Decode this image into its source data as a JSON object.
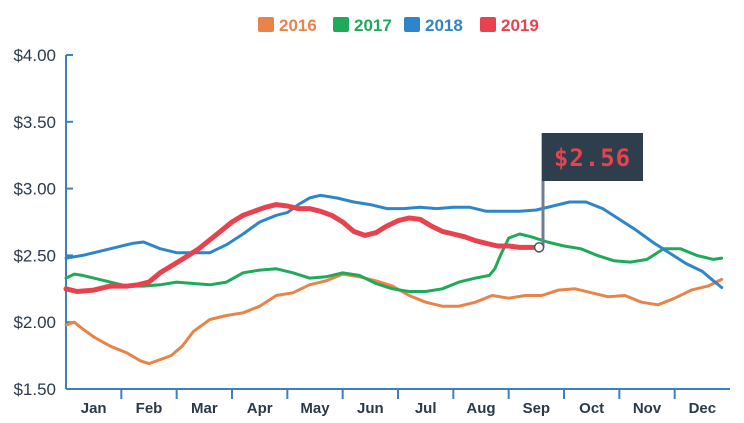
{
  "chart_data": {
    "type": "line",
    "title": "",
    "xlabel": "",
    "ylabel": "",
    "categories": [
      "Jan",
      "Feb",
      "Mar",
      "Apr",
      "May",
      "Jun",
      "Jul",
      "Aug",
      "Sep",
      "Oct",
      "Nov",
      "Dec"
    ],
    "y_ticks": [
      "$1.50",
      "$2.00",
      "$2.50",
      "$3.00",
      "$3.50",
      "$4.00"
    ],
    "ylim": [
      1.5,
      4.0
    ],
    "xlim": [
      0,
      12
    ],
    "grid": false,
    "legend_position": "top",
    "series": [
      {
        "name": "2016",
        "color": "#e8834a",
        "x": [
          0,
          0.15,
          0.3,
          0.5,
          0.8,
          1.1,
          1.35,
          1.5,
          1.7,
          1.9,
          2.1,
          2.3,
          2.6,
          2.9,
          3.2,
          3.5,
          3.8,
          4.1,
          4.4,
          4.7,
          5.0,
          5.3,
          5.6,
          5.9,
          6.2,
          6.5,
          6.8,
          7.1,
          7.4,
          7.7,
          8.0,
          8.3,
          8.6,
          8.9,
          9.2,
          9.5,
          9.8,
          10.1,
          10.4,
          10.7,
          11.0,
          11.3,
          11.6,
          11.85
        ],
        "y": [
          1.98,
          2.0,
          1.95,
          1.89,
          1.82,
          1.77,
          1.71,
          1.69,
          1.72,
          1.75,
          1.82,
          1.93,
          2.02,
          2.05,
          2.07,
          2.12,
          2.2,
          2.22,
          2.28,
          2.31,
          2.36,
          2.34,
          2.31,
          2.27,
          2.2,
          2.15,
          2.12,
          2.12,
          2.15,
          2.2,
          2.18,
          2.2,
          2.2,
          2.24,
          2.25,
          2.22,
          2.19,
          2.2,
          2.15,
          2.13,
          2.18,
          2.24,
          2.27,
          2.32
        ]
      },
      {
        "name": "2017",
        "color": "#1faa59",
        "x": [
          0,
          0.15,
          0.3,
          0.5,
          0.8,
          1.1,
          1.4,
          1.7,
          2.0,
          2.3,
          2.6,
          2.9,
          3.2,
          3.5,
          3.8,
          4.1,
          4.4,
          4.7,
          5.0,
          5.3,
          5.6,
          5.9,
          6.2,
          6.5,
          6.8,
          7.1,
          7.4,
          7.65,
          7.75,
          7.85,
          8.0,
          8.2,
          8.4,
          8.7,
          9.0,
          9.3,
          9.6,
          9.9,
          10.2,
          10.5,
          10.8,
          11.1,
          11.4,
          11.7,
          11.85
        ],
        "y": [
          2.33,
          2.36,
          2.35,
          2.33,
          2.3,
          2.27,
          2.27,
          2.28,
          2.3,
          2.29,
          2.28,
          2.3,
          2.37,
          2.39,
          2.4,
          2.37,
          2.33,
          2.34,
          2.37,
          2.35,
          2.29,
          2.25,
          2.23,
          2.23,
          2.25,
          2.3,
          2.33,
          2.35,
          2.4,
          2.5,
          2.63,
          2.66,
          2.64,
          2.6,
          2.57,
          2.55,
          2.5,
          2.46,
          2.45,
          2.47,
          2.55,
          2.55,
          2.5,
          2.47,
          2.48
        ]
      },
      {
        "name": "2018",
        "color": "#2e86c8",
        "x": [
          0,
          0.3,
          0.6,
          0.9,
          1.2,
          1.4,
          1.7,
          2.0,
          2.3,
          2.6,
          2.9,
          3.2,
          3.5,
          3.8,
          4.0,
          4.2,
          4.4,
          4.6,
          4.9,
          5.2,
          5.5,
          5.8,
          6.1,
          6.4,
          6.7,
          7.0,
          7.3,
          7.6,
          7.9,
          8.2,
          8.5,
          8.8,
          9.1,
          9.4,
          9.7,
          10.0,
          10.3,
          10.6,
          10.9,
          11.2,
          11.5,
          11.7,
          11.85
        ],
        "y": [
          2.48,
          2.5,
          2.53,
          2.56,
          2.59,
          2.6,
          2.55,
          2.52,
          2.52,
          2.52,
          2.58,
          2.66,
          2.75,
          2.8,
          2.82,
          2.88,
          2.93,
          2.95,
          2.93,
          2.9,
          2.88,
          2.85,
          2.85,
          2.86,
          2.85,
          2.86,
          2.86,
          2.83,
          2.83,
          2.83,
          2.84,
          2.87,
          2.9,
          2.9,
          2.85,
          2.77,
          2.69,
          2.6,
          2.52,
          2.44,
          2.38,
          2.31,
          2.26
        ]
      },
      {
        "name": "2019",
        "color": "#e8424f",
        "x": [
          0,
          0.2,
          0.5,
          0.8,
          1.1,
          1.3,
          1.5,
          1.7,
          1.9,
          2.1,
          2.4,
          2.7,
          3.0,
          3.2,
          3.4,
          3.6,
          3.8,
          4.0,
          4.2,
          4.4,
          4.6,
          4.8,
          5.0,
          5.2,
          5.4,
          5.6,
          5.8,
          6.0,
          6.2,
          6.4,
          6.6,
          6.8,
          7.0,
          7.2,
          7.4,
          7.6,
          7.8,
          8.0,
          8.2,
          8.4,
          8.55
        ],
        "y": [
          2.25,
          2.23,
          2.24,
          2.27,
          2.27,
          2.28,
          2.3,
          2.37,
          2.42,
          2.47,
          2.55,
          2.65,
          2.75,
          2.8,
          2.83,
          2.86,
          2.88,
          2.87,
          2.85,
          2.85,
          2.83,
          2.8,
          2.75,
          2.68,
          2.65,
          2.67,
          2.72,
          2.76,
          2.78,
          2.77,
          2.72,
          2.68,
          2.66,
          2.64,
          2.61,
          2.59,
          2.57,
          2.57,
          2.56,
          2.56,
          2.56
        ]
      }
    ],
    "annotation": {
      "text": "$2.56",
      "x": 8.55,
      "y": 2.56,
      "series": "2019"
    }
  },
  "colors": {
    "axis": "#3d7fc1",
    "tick_text": "#2b3a4a",
    "callout_bg": "#2f3e4d",
    "callout_pole": "#6f7f8f",
    "callout_text": "#e8424f"
  }
}
